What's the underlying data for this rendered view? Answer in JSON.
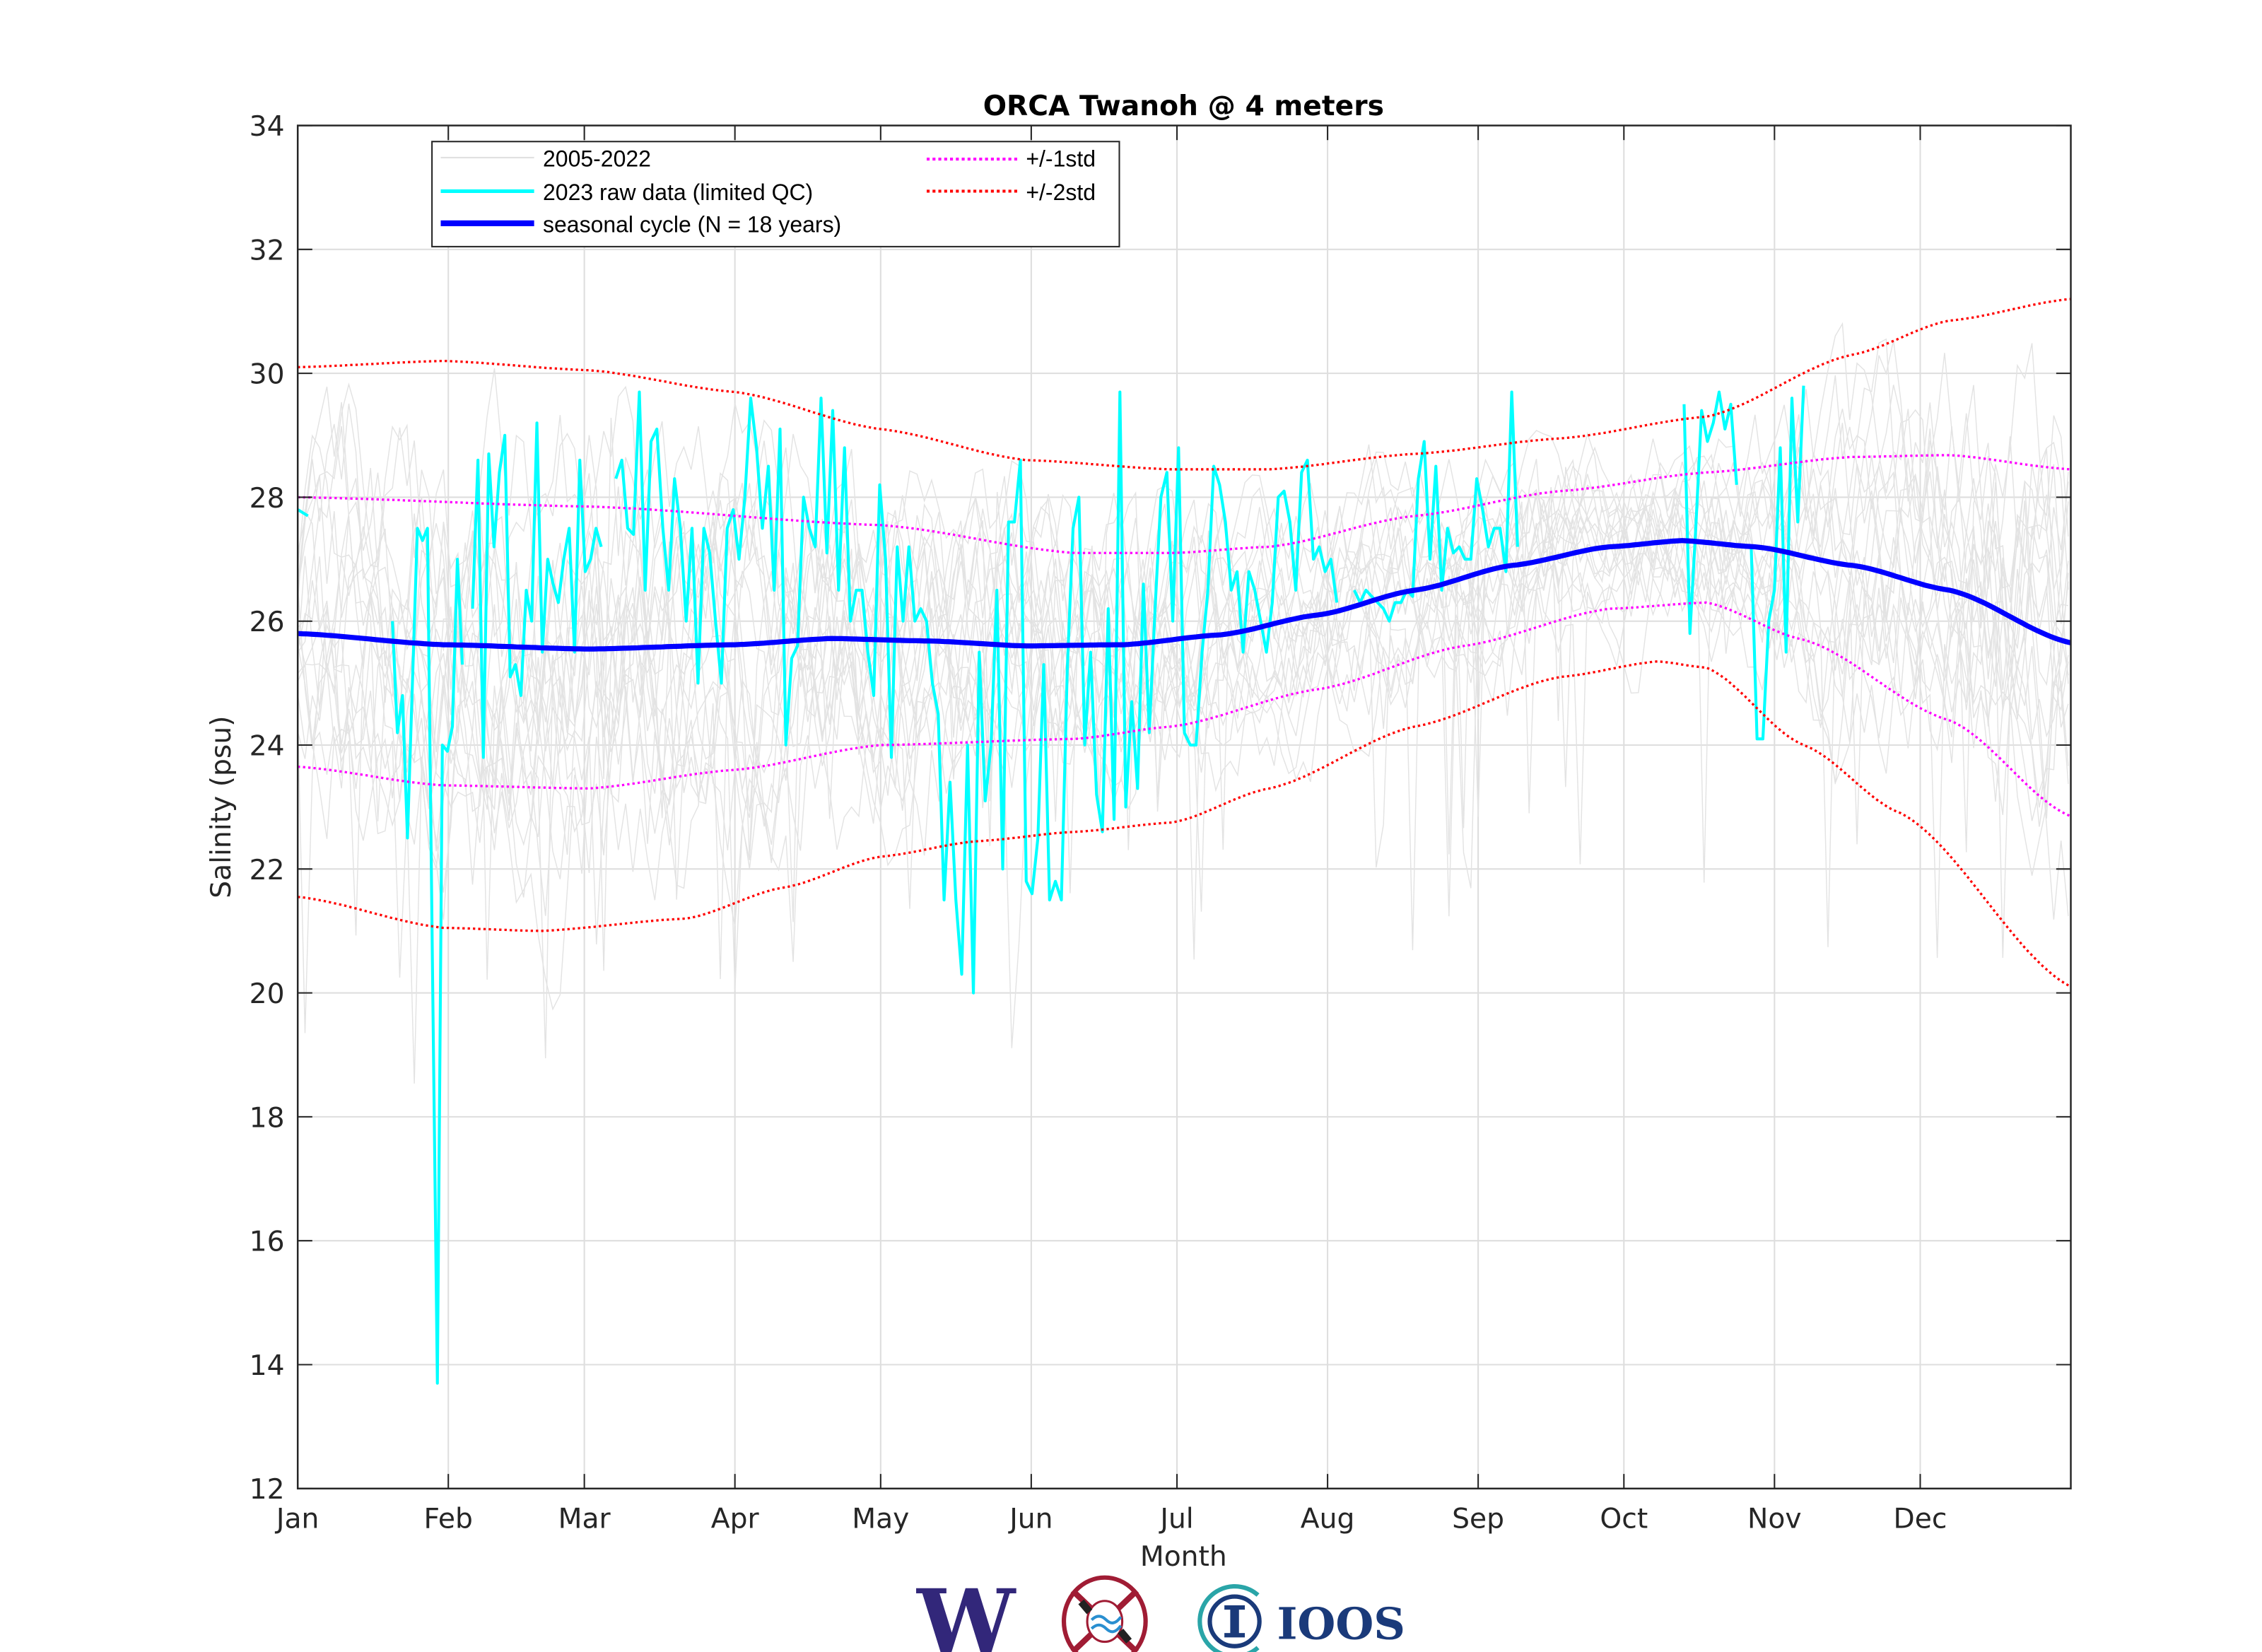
{
  "chart_data": {
    "type": "line",
    "title": "ORCA Twanoh @ 4 meters",
    "xlabel": "Month",
    "ylabel": "Salinity (psu)",
    "xlim": [
      0,
      365
    ],
    "ylim": [
      12,
      34
    ],
    "grid": true,
    "yticks": [
      12,
      14,
      16,
      18,
      20,
      22,
      24,
      26,
      28,
      30,
      32,
      34
    ],
    "xticks": [
      {
        "day": 0,
        "label": "Jan"
      },
      {
        "day": 31,
        "label": "Feb"
      },
      {
        "day": 59,
        "label": "Mar"
      },
      {
        "day": 90,
        "label": "Apr"
      },
      {
        "day": 120,
        "label": "May"
      },
      {
        "day": 151,
        "label": "Jun"
      },
      {
        "day": 181,
        "label": "Jul"
      },
      {
        "day": 212,
        "label": "Aug"
      },
      {
        "day": 243,
        "label": "Sep"
      },
      {
        "day": 273,
        "label": "Oct"
      },
      {
        "day": 304,
        "label": "Nov"
      },
      {
        "day": 334,
        "label": "Dec"
      }
    ],
    "legend": {
      "placement": "top-left",
      "entries": [
        {
          "label": "2005-2022",
          "color": "#e0e0e0",
          "style": "solid"
        },
        {
          "label": "2023 raw data (limited QC)",
          "color": "#00ffff",
          "style": "solid"
        },
        {
          "label": "seasonal cycle (N = 18 years)",
          "color": "#0000ff",
          "style": "solid-thick"
        },
        {
          "label": "+/-1std",
          "color": "#ff00ff",
          "style": "dotted"
        },
        {
          "label": "+/-2std",
          "color": "#ff0000",
          "style": "dotted"
        }
      ]
    },
    "series": [
      {
        "name": "seasonal cycle (N = 18 years)",
        "color": "#0000ff",
        "x": [
          0,
          30,
          60,
          90,
          110,
          130,
          150,
          170,
          190,
          210,
          230,
          250,
          270,
          285,
          300,
          320,
          340,
          365
        ],
        "y": [
          25.8,
          25.62,
          25.55,
          25.62,
          25.72,
          25.68,
          25.6,
          25.62,
          25.78,
          26.1,
          26.5,
          26.9,
          27.2,
          27.3,
          27.2,
          26.9,
          26.5,
          25.65
        ]
      },
      {
        "name": "+1std",
        "color": "#ff00ff",
        "x": [
          0,
          60,
          120,
          160,
          180,
          200,
          230,
          260,
          290,
          320,
          340,
          365
        ],
        "y": [
          28.0,
          27.85,
          27.55,
          27.1,
          27.1,
          27.2,
          27.7,
          28.1,
          28.4,
          28.65,
          28.68,
          28.45
        ]
      },
      {
        "name": "-1std",
        "color": "#ff00ff",
        "x": [
          0,
          30,
          60,
          90,
          120,
          160,
          180,
          210,
          240,
          270,
          290,
          310,
          340,
          365
        ],
        "y": [
          23.65,
          23.35,
          23.3,
          23.6,
          24.0,
          24.1,
          24.3,
          24.9,
          25.6,
          26.2,
          26.3,
          25.7,
          24.4,
          22.85
        ]
      },
      {
        "name": "+2std",
        "color": "#ff0000",
        "x": [
          0,
          30,
          60,
          90,
          120,
          150,
          180,
          200,
          230,
          260,
          290,
          320,
          340,
          365
        ],
        "y": [
          30.1,
          30.2,
          30.05,
          29.7,
          29.1,
          28.6,
          28.45,
          28.45,
          28.7,
          28.95,
          29.3,
          30.3,
          30.85,
          31.2
        ]
      },
      {
        "name": "-2std",
        "color": "#ff0000",
        "x": [
          0,
          30,
          50,
          80,
          100,
          120,
          140,
          160,
          180,
          200,
          230,
          260,
          280,
          290,
          310,
          330,
          365
        ],
        "y": [
          21.55,
          21.05,
          21.0,
          21.2,
          21.7,
          22.2,
          22.45,
          22.6,
          22.75,
          23.3,
          24.3,
          25.1,
          25.35,
          25.25,
          24.0,
          22.9,
          20.1
        ]
      }
    ],
    "raw_2023": {
      "name": "2023 raw data (limited QC)",
      "color": "#00ffff",
      "segments": [
        {
          "start": 0,
          "end": 2.1,
          "values": [
            27.8,
            27.7
          ]
        },
        {
          "start": 19.5,
          "end": 33.9,
          "values": [
            26.0,
            24.2,
            24.8,
            22.5,
            25.0,
            27.5,
            27.3,
            27.5,
            20.5,
            13.7,
            24.0,
            23.9,
            24.3,
            27.0,
            25.3
          ]
        },
        {
          "start": 36,
          "end": 62.5,
          "values": [
            26.2,
            28.6,
            23.8,
            28.7,
            27.2,
            28.4,
            29.0,
            25.1,
            25.3,
            24.8,
            26.5,
            26.0,
            29.2,
            25.5,
            27.0,
            26.6,
            26.3,
            27.0,
            27.5,
            25.5,
            28.6,
            26.8,
            27.0,
            27.5,
            27.2
          ]
        },
        {
          "start": 65.5,
          "end": 213.9,
          "values": [
            28.3,
            28.6,
            27.5,
            27.4,
            29.7,
            26.5,
            28.9,
            29.1,
            27.5,
            26.5,
            28.3,
            27.5,
            26.0,
            27.5,
            25.0,
            27.5,
            27.1,
            26.0,
            25.0,
            27.5,
            27.8,
            27.0,
            28.0,
            29.6,
            28.8,
            27.5,
            28.5,
            26.5,
            29.1,
            24.0,
            25.4,
            25.6,
            28.0,
            27.5,
            27.2,
            29.6,
            27.1,
            29.4,
            26.5,
            28.8,
            26.0,
            26.5,
            26.5,
            25.5,
            24.8,
            28.2,
            27.0,
            23.8,
            27.2,
            26.0,
            27.2,
            26.0,
            26.2,
            26.0,
            25.0,
            24.5,
            21.5,
            23.4,
            21.5,
            20.3,
            24.0,
            20.0,
            25.5,
            23.1,
            24.0,
            26.5,
            22.0,
            27.6,
            27.6,
            28.6,
            21.8,
            21.6,
            22.5,
            25.3,
            21.5,
            21.8,
            21.5,
            25.2,
            27.5,
            28.0,
            24.0,
            25.5,
            23.2,
            22.6,
            26.2,
            22.8,
            29.7,
            23.0,
            24.7,
            23.3,
            26.6,
            24.2,
            26.2,
            28.0,
            28.4,
            26.0,
            28.8,
            24.2,
            24.0,
            24.0,
            25.5,
            26.5,
            28.5,
            28.2,
            27.6,
            26.5,
            26.8,
            25.5,
            26.8,
            26.5,
            26.0,
            25.5,
            26.3,
            28.0,
            28.1,
            27.6,
            26.5,
            28.4,
            28.6,
            27.0,
            27.2,
            26.8,
            27.0,
            26.3
          ]
        },
        {
          "start": 217.5,
          "end": 251.1,
          "values": [
            26.5,
            26.3,
            26.5,
            26.4,
            26.3,
            26.2,
            26.0,
            26.3,
            26.3,
            26.5,
            26.4,
            28.3,
            28.9,
            27.0,
            28.5,
            26.5,
            27.5,
            27.1,
            27.2,
            27.0,
            27.0,
            28.3,
            27.8,
            27.2,
            27.5,
            27.5,
            26.8,
            29.7,
            27.2
          ]
        },
        {
          "start": 285.4,
          "end": 296.2,
          "values": [
            29.5,
            25.8,
            27.5,
            29.4,
            28.9,
            29.2,
            29.7,
            29.1,
            29.5,
            28.2
          ]
        },
        {
          "start": 299.2,
          "end": 310,
          "values": [
            27.2,
            24.1,
            24.1,
            26.0,
            26.5,
            28.8,
            25.5,
            29.6,
            27.6,
            29.8
          ]
        }
      ]
    }
  },
  "logos": {
    "uw": "W",
    "nanoos_seal": "NANOOS",
    "ioos": "IOOS"
  }
}
